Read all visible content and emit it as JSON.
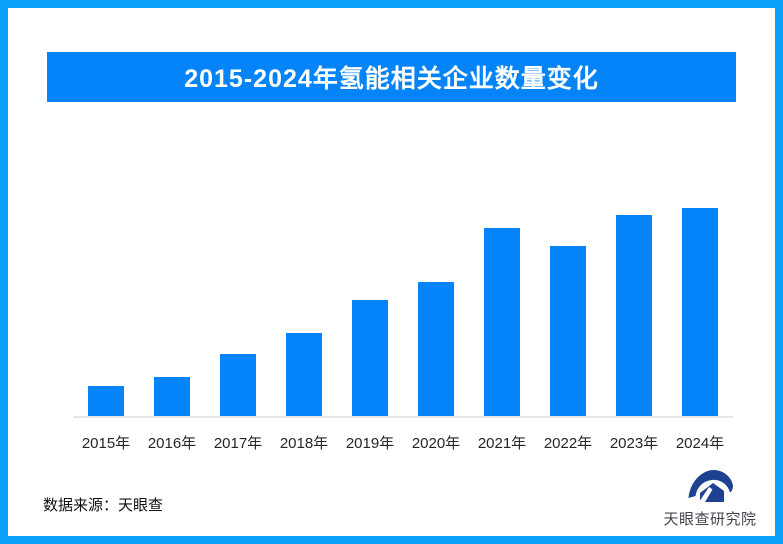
{
  "colors": {
    "frame_blue": "#09A1F9",
    "accent_blue": "#0584FA",
    "axis_gray": "#E6E6E6",
    "logo_navy": "#1E4191"
  },
  "header": {
    "title": "2015-2024年氢能相关企业数量变化"
  },
  "chart_data": {
    "type": "bar",
    "title": "2015-2024年氢能相关企业数量变化",
    "categories": [
      "2015年",
      "2016年",
      "2017年",
      "2018年",
      "2019年",
      "2020年",
      "2021年",
      "2022年",
      "2023年",
      "2024年"
    ],
    "values_relative": [
      14.4,
      18.8,
      29.8,
      39.9,
      55.8,
      64.4,
      90.4,
      81.7,
      96.6,
      100
    ],
    "ylim": [
      0,
      100
    ],
    "xlabel": "",
    "ylabel": "",
    "grid": false,
    "legend": false,
    "value_labels_shown": false,
    "bar_color": "#0584FA",
    "note": "no y-axis or value labels shown; values are relative bar heights (max bar = 100)"
  },
  "footer": {
    "source_text": "数据来源：天眼查",
    "logo_text": "天眼查研究院"
  }
}
